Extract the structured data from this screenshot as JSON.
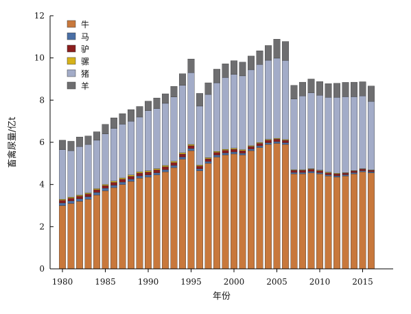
{
  "chart_data": {
    "type": "bar",
    "stacked": true,
    "title": "",
    "xlabel": "年份",
    "ylabel": "畜禽尿量/亿t",
    "ylim": [
      0,
      12
    ],
    "yticks": [
      0,
      2,
      4,
      6,
      8,
      10,
      12
    ],
    "xticks": [
      1980,
      1985,
      1990,
      1995,
      2000,
      2005,
      2010,
      2015
    ],
    "legend_position": "top-left",
    "grid": false,
    "x": [
      1980,
      1981,
      1982,
      1983,
      1984,
      1985,
      1986,
      1987,
      1988,
      1989,
      1990,
      1991,
      1992,
      1993,
      1994,
      1995,
      1996,
      1997,
      1998,
      1999,
      2000,
      2001,
      2002,
      2003,
      2004,
      2005,
      2006,
      2007,
      2008,
      2009,
      2010,
      2011,
      2012,
      2013,
      2014,
      2015,
      2016
    ],
    "series": [
      {
        "name": "牛",
        "color": "#c8783c",
        "values": [
          3.0,
          3.1,
          3.2,
          3.3,
          3.5,
          3.7,
          3.85,
          4.0,
          4.15,
          4.3,
          4.35,
          4.45,
          4.6,
          4.8,
          5.2,
          5.6,
          4.65,
          5.0,
          5.3,
          5.4,
          5.45,
          5.4,
          5.6,
          5.75,
          5.9,
          5.95,
          5.9,
          4.5,
          4.5,
          4.55,
          4.5,
          4.4,
          4.35,
          4.4,
          4.5,
          4.6,
          4.55
        ]
      },
      {
        "name": "马",
        "color": "#4a6fa5",
        "values": [
          0.12,
          0.12,
          0.12,
          0.12,
          0.12,
          0.12,
          0.11,
          0.11,
          0.1,
          0.1,
          0.1,
          0.1,
          0.1,
          0.1,
          0.1,
          0.1,
          0.09,
          0.09,
          0.09,
          0.09,
          0.09,
          0.08,
          0.08,
          0.08,
          0.08,
          0.08,
          0.08,
          0.07,
          0.07,
          0.07,
          0.06,
          0.06,
          0.06,
          0.06,
          0.06,
          0.05,
          0.05
        ]
      },
      {
        "name": "驴",
        "color": "#8b1e1e",
        "values": [
          0.13,
          0.13,
          0.13,
          0.13,
          0.13,
          0.13,
          0.14,
          0.14,
          0.14,
          0.14,
          0.14,
          0.14,
          0.14,
          0.14,
          0.14,
          0.14,
          0.13,
          0.13,
          0.13,
          0.13,
          0.13,
          0.12,
          0.12,
          0.12,
          0.12,
          0.12,
          0.11,
          0.1,
          0.1,
          0.1,
          0.09,
          0.09,
          0.09,
          0.08,
          0.08,
          0.08,
          0.07
        ]
      },
      {
        "name": "骡",
        "color": "#d6b21a",
        "values": [
          0.05,
          0.05,
          0.05,
          0.05,
          0.05,
          0.05,
          0.06,
          0.06,
          0.06,
          0.06,
          0.06,
          0.06,
          0.06,
          0.06,
          0.06,
          0.06,
          0.05,
          0.05,
          0.05,
          0.05,
          0.05,
          0.05,
          0.04,
          0.04,
          0.04,
          0.04,
          0.04,
          0.03,
          0.03,
          0.03,
          0.03,
          0.03,
          0.03,
          0.02,
          0.02,
          0.02,
          0.02
        ]
      },
      {
        "name": "猪",
        "color": "#a3acc8",
        "values": [
          2.35,
          2.2,
          2.3,
          2.3,
          2.3,
          2.4,
          2.5,
          2.55,
          2.55,
          2.6,
          2.85,
          2.85,
          2.95,
          3.05,
          3.2,
          3.4,
          2.8,
          3.0,
          3.25,
          3.4,
          3.5,
          3.5,
          3.6,
          3.7,
          3.75,
          3.8,
          3.75,
          3.35,
          3.5,
          3.6,
          3.55,
          3.55,
          3.6,
          3.6,
          3.5,
          3.45,
          3.25
        ]
      },
      {
        "name": "羊",
        "color": "#6e6e70",
        "values": [
          0.45,
          0.45,
          0.45,
          0.4,
          0.4,
          0.45,
          0.5,
          0.5,
          0.55,
          0.5,
          0.45,
          0.5,
          0.45,
          0.5,
          0.55,
          0.65,
          0.6,
          0.55,
          0.65,
          0.65,
          0.65,
          0.65,
          0.65,
          0.65,
          0.7,
          0.9,
          0.9,
          0.65,
          0.65,
          0.65,
          0.65,
          0.65,
          0.67,
          0.68,
          0.69,
          0.67,
          0.73
        ]
      }
    ]
  }
}
